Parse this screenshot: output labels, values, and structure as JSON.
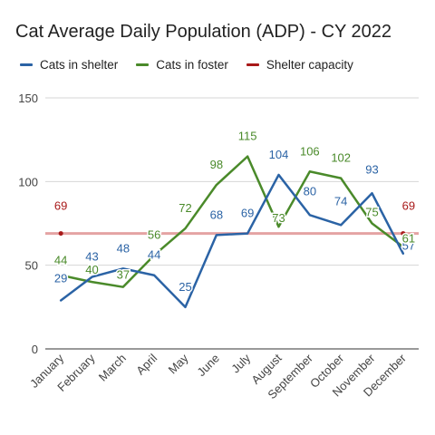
{
  "chart_data": {
    "type": "line",
    "title": "Cat Average Daily Population (ADP) - CY 2022",
    "categories": [
      "January",
      "February",
      "March",
      "April",
      "May",
      "June",
      "July",
      "August",
      "September",
      "October",
      "November",
      "December"
    ],
    "ylim": [
      0,
      150
    ],
    "yticks": [
      0,
      50,
      100,
      150
    ],
    "grid": true,
    "legend_position": "top",
    "series": [
      {
        "name": "Cats in shelter",
        "color": "#2b63a5",
        "values": [
          29,
          43,
          48,
          44,
          25,
          68,
          69,
          104,
          80,
          74,
          93,
          57
        ],
        "labels": [
          "29",
          "43",
          "48",
          "44",
          "25",
          "68",
          "69",
          "104",
          "80",
          "74",
          "93",
          "57"
        ]
      },
      {
        "name": "Cats in foster",
        "color": "#4a8a2a",
        "values": [
          44,
          40,
          37,
          56,
          72,
          98,
          115,
          73,
          106,
          102,
          75,
          61
        ],
        "labels": [
          "44",
          "40",
          "37",
          "56",
          "72",
          "98",
          "115",
          "73",
          "106",
          "102",
          "75",
          "61"
        ]
      },
      {
        "name": "Shelter capacity",
        "color": "#a81919",
        "values": [
          69,
          69,
          69,
          69,
          69,
          69,
          69,
          69,
          69,
          69,
          69,
          69
        ],
        "labels": [
          "69",
          "",
          "",
          "",
          "",
          "",
          "",
          "",
          "",
          "",
          "",
          "69"
        ]
      }
    ]
  }
}
